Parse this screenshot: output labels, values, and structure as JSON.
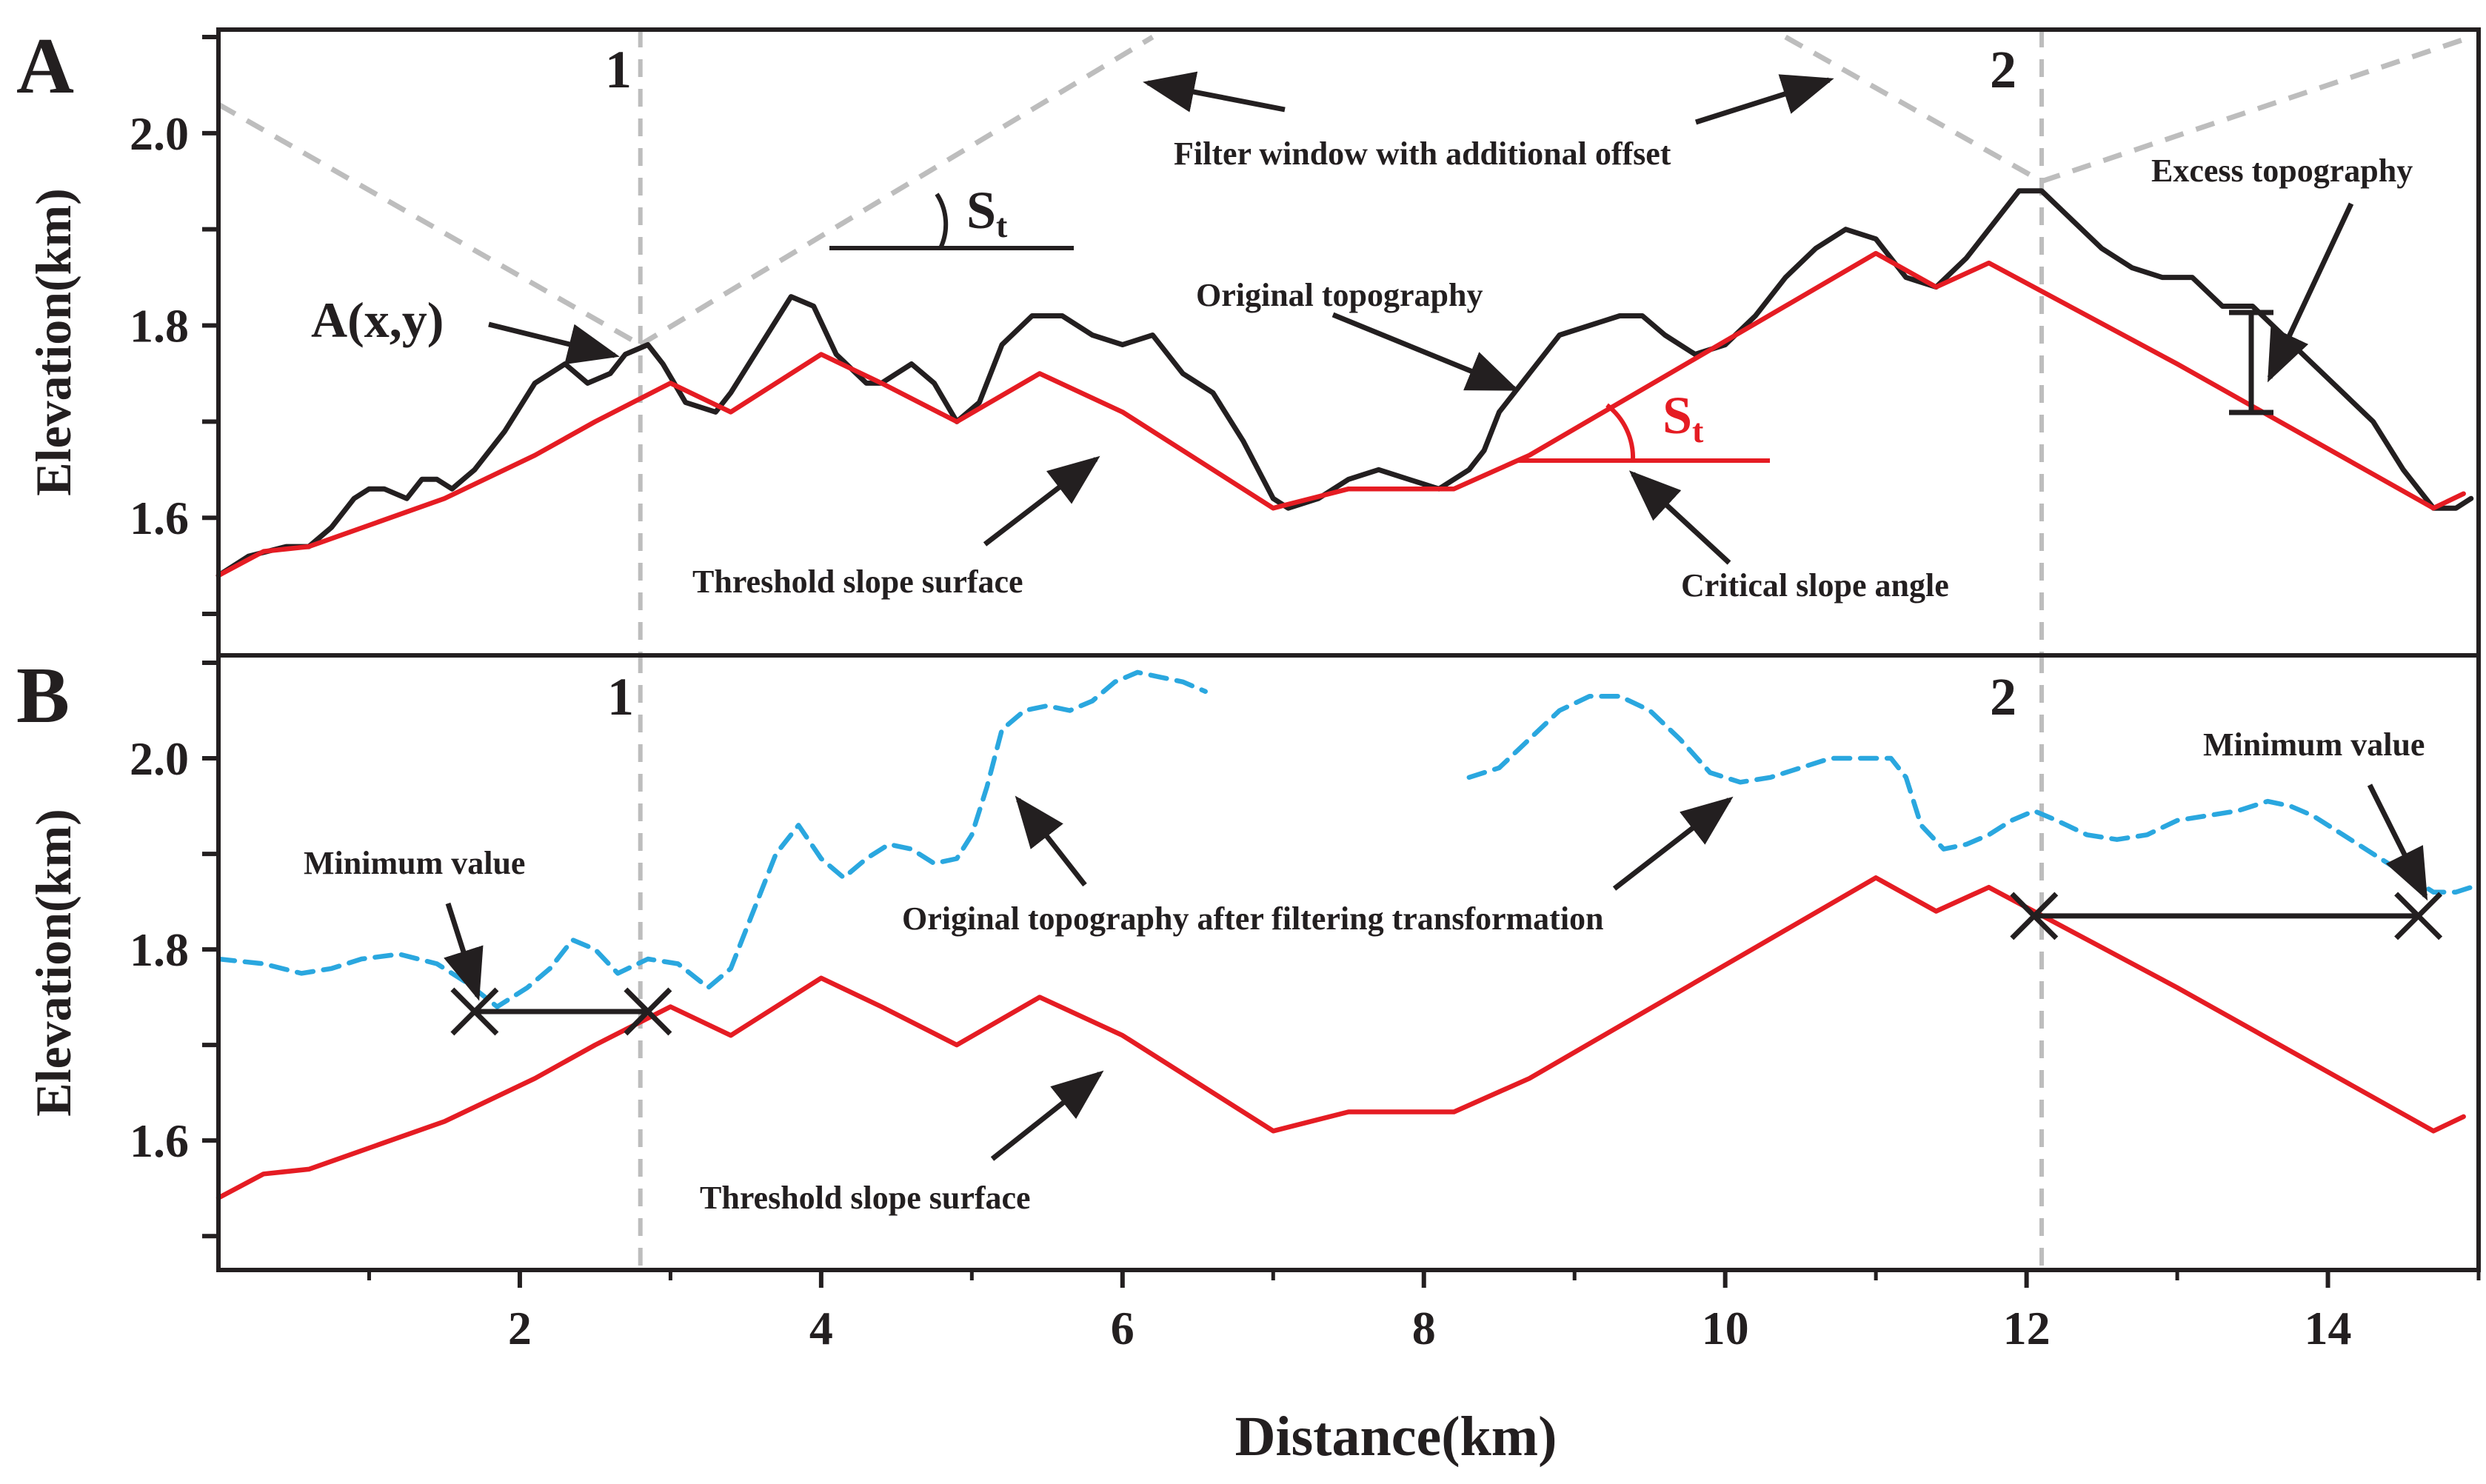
{
  "chart_data": [
    {
      "panel": "A",
      "type": "line",
      "panel_label": "A",
      "xlabel": "",
      "ylabel": "Elevation(km)",
      "xlim": [
        0,
        15
      ],
      "ylim": [
        1.48,
        2.1
      ],
      "yticks": [
        1.6,
        1.8,
        2.0
      ],
      "ytick_labels": [
        "1.6",
        "1.8",
        "2.0"
      ],
      "series": [
        {
          "name": "Original topography",
          "color": "#231f20",
          "style": "solid",
          "x": [
            0,
            0.2,
            0.45,
            0.6,
            0.75,
            0.9,
            1.0,
            1.1,
            1.25,
            1.35,
            1.45,
            1.55,
            1.7,
            1.9,
            2.1,
            2.3,
            2.45,
            2.6,
            2.7,
            2.85,
            2.95,
            3.1,
            3.3,
            3.4,
            3.6,
            3.8,
            3.95,
            4.1,
            4.3,
            4.4,
            4.6,
            4.75,
            4.9,
            5.05,
            5.2,
            5.4,
            5.6,
            5.8,
            6.0,
            6.2,
            6.4,
            6.6,
            6.8,
            7.0,
            7.1,
            7.3,
            7.5,
            7.7,
            7.9,
            8.1,
            8.3,
            8.4,
            8.5,
            8.7,
            8.9,
            9.1,
            9.3,
            9.45,
            9.6,
            9.8,
            10.0,
            10.2,
            10.4,
            10.6,
            10.8,
            11.0,
            11.2,
            11.4,
            11.6,
            11.8,
            11.95,
            12.1,
            12.3,
            12.5,
            12.7,
            12.9,
            13.1,
            13.3,
            13.5,
            13.7,
            13.9,
            14.1,
            14.3,
            14.5,
            14.7,
            14.85,
            14.95
          ],
          "y": [
            1.54,
            1.56,
            1.57,
            1.57,
            1.59,
            1.62,
            1.63,
            1.63,
            1.62,
            1.64,
            1.64,
            1.63,
            1.65,
            1.69,
            1.74,
            1.76,
            1.74,
            1.75,
            1.77,
            1.78,
            1.76,
            1.72,
            1.71,
            1.73,
            1.78,
            1.83,
            1.82,
            1.77,
            1.74,
            1.74,
            1.76,
            1.74,
            1.7,
            1.72,
            1.78,
            1.81,
            1.81,
            1.79,
            1.78,
            1.79,
            1.75,
            1.73,
            1.68,
            1.62,
            1.61,
            1.62,
            1.64,
            1.65,
            1.64,
            1.63,
            1.65,
            1.67,
            1.71,
            1.75,
            1.79,
            1.8,
            1.81,
            1.81,
            1.79,
            1.77,
            1.78,
            1.81,
            1.85,
            1.88,
            1.9,
            1.89,
            1.85,
            1.84,
            1.87,
            1.91,
            1.94,
            1.94,
            1.91,
            1.88,
            1.86,
            1.85,
            1.85,
            1.82,
            1.82,
            1.79,
            1.76,
            1.73,
            1.7,
            1.65,
            1.61,
            1.61,
            1.62
          ]
        },
        {
          "name": "Threshold slope surface",
          "color": "#e51c23",
          "style": "solid",
          "x": [
            0,
            0.3,
            0.6,
            1.5,
            2.1,
            2.5,
            3.0,
            3.4,
            4.0,
            4.4,
            4.9,
            5.45,
            6.0,
            7.0,
            7.5,
            8.2,
            8.7,
            11.0,
            11.4,
            11.75,
            13.0,
            14.7,
            14.9
          ],
          "y": [
            1.54,
            1.565,
            1.57,
            1.62,
            1.665,
            1.7,
            1.74,
            1.71,
            1.77,
            1.74,
            1.7,
            1.75,
            1.71,
            1.61,
            1.63,
            1.63,
            1.665,
            1.875,
            1.84,
            1.865,
            1.76,
            1.61,
            1.625
          ]
        }
      ],
      "vertical_markers": [
        {
          "x": 2.8,
          "label": "1"
        },
        {
          "x": 12.1,
          "label": "2"
        }
      ],
      "filter_window_lines": [
        {
          "x": [
            0.0,
            2.8
          ],
          "y": [
            2.03,
            1.78
          ]
        },
        {
          "x": [
            2.8,
            6.2
          ],
          "y": [
            1.78,
            2.1
          ]
        },
        {
          "x": [
            10.4,
            12.1
          ],
          "y": [
            2.1,
            1.95
          ]
        },
        {
          "x": [
            12.1,
            14.95
          ],
          "y": [
            1.95,
            2.1
          ]
        }
      ],
      "annotations": {
        "a_xy": "A(x,y)",
        "filter_window": "Filter window with additional offset",
        "st_symbol": "S",
        "st_subscript": "t",
        "original_topography": "Original topography",
        "threshold_slope_surface": "Threshold slope surface",
        "critical_slope_angle": "Critical slope angle",
        "excess_topography": "Excess topography"
      }
    },
    {
      "panel": "B",
      "type": "line",
      "panel_label": "B",
      "xlabel": "Distance(km)",
      "ylabel": "Elevation(km)",
      "xlim": [
        0,
        15
      ],
      "ylim": [
        1.48,
        2.1
      ],
      "xticks": [
        2,
        4,
        6,
        8,
        10,
        12,
        14
      ],
      "xtick_labels": [
        "2",
        "4",
        "6",
        "8",
        "10",
        "12",
        "14"
      ],
      "yticks": [
        1.6,
        1.8,
        2.0
      ],
      "ytick_labels": [
        "1.6",
        "1.8",
        "2.0"
      ],
      "series": [
        {
          "name": "Original topography after filtering transformation",
          "color": "#2aa7df",
          "style": "dashed",
          "segments": [
            {
              "x": [
                0,
                0.3,
                0.55,
                0.75,
                0.95,
                1.2,
                1.45,
                1.65,
                1.85,
                2.05,
                2.2,
                2.35,
                2.5,
                2.65,
                2.85,
                3.05,
                3.25,
                3.4,
                3.55,
                3.7,
                3.85,
                4.0,
                4.15,
                4.3,
                4.45,
                4.6,
                4.75,
                4.9,
                5.0,
                5.1,
                5.2,
                5.35,
                5.5,
                5.65,
                5.8,
                5.95,
                6.1,
                6.25,
                6.4,
                6.55
              ],
              "y": [
                1.79,
                1.785,
                1.775,
                1.78,
                1.79,
                1.795,
                1.785,
                1.765,
                1.74,
                1.76,
                1.78,
                1.81,
                1.8,
                1.775,
                1.79,
                1.785,
                1.76,
                1.78,
                1.84,
                1.9,
                1.93,
                1.895,
                1.875,
                1.895,
                1.91,
                1.905,
                1.89,
                1.895,
                1.92,
                1.97,
                2.03,
                2.05,
                2.055,
                2.05,
                2.06,
                2.08,
                2.09,
                2.085,
                2.08,
                2.07
              ]
            },
            {
              "x": [
                8.3,
                8.5,
                8.7,
                8.9,
                9.1,
                9.3,
                9.5,
                9.7,
                9.9,
                10.1,
                10.3,
                10.5,
                10.7,
                10.9,
                11.1,
                11.2,
                11.3,
                11.45,
                11.6,
                11.75,
                11.9,
                12.05,
                12.2,
                12.4,
                12.6,
                12.8,
                13.0,
                13.2,
                13.4,
                13.6,
                13.75,
                13.9,
                14.1,
                14.3,
                14.5,
                14.7,
                14.85,
                14.95
              ],
              "y": [
                1.98,
                1.99,
                2.02,
                2.05,
                2.065,
                2.065,
                2.05,
                2.02,
                1.985,
                1.975,
                1.98,
                1.99,
                2.0,
                2.0,
                2.0,
                1.98,
                1.93,
                1.905,
                1.91,
                1.92,
                1.935,
                1.945,
                1.935,
                1.92,
                1.915,
                1.92,
                1.935,
                1.94,
                1.945,
                1.955,
                1.95,
                1.94,
                1.92,
                1.9,
                1.88,
                1.86,
                1.86,
                1.865
              ]
            }
          ]
        },
        {
          "name": "Threshold slope surface",
          "color": "#e51c23",
          "style": "solid",
          "x": [
            0,
            0.3,
            0.6,
            1.5,
            2.1,
            2.5,
            3.0,
            3.4,
            4.0,
            4.4,
            4.9,
            5.45,
            6.0,
            7.0,
            7.5,
            8.2,
            8.7,
            11.0,
            11.4,
            11.75,
            13.0,
            14.7,
            14.9
          ],
          "y": [
            1.54,
            1.565,
            1.57,
            1.62,
            1.665,
            1.7,
            1.74,
            1.71,
            1.77,
            1.74,
            1.7,
            1.75,
            1.71,
            1.61,
            1.63,
            1.63,
            1.665,
            1.875,
            1.84,
            1.865,
            1.76,
            1.61,
            1.625
          ]
        }
      ],
      "minimum_value_markers": [
        {
          "x_from": 1.7,
          "x_to": 2.85,
          "y": 1.735
        },
        {
          "x_from": 12.05,
          "x_to": 14.6,
          "y": 1.835
        }
      ],
      "vertical_markers": [
        {
          "x": 2.8,
          "label": "1"
        },
        {
          "x": 12.1,
          "label": "2"
        }
      ],
      "annotations": {
        "minimum_value_left": "Minimum value",
        "minimum_value_right": "Minimum value",
        "filtered_topography": "Original topography after filtering transformation",
        "threshold_slope_surface": "Threshold slope surface"
      }
    }
  ]
}
